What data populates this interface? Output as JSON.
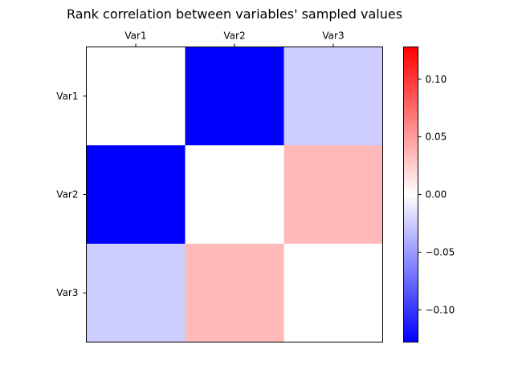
{
  "chart_data": {
    "type": "heatmap",
    "title": "Rank correlation between variables' sampled values",
    "x_labels": [
      "Var1",
      "Var2",
      "Var3"
    ],
    "y_labels": [
      "Var1",
      "Var2",
      "Var3"
    ],
    "x_tick_position": "top",
    "values": [
      [
        0.0,
        -0.128,
        -0.025
      ],
      [
        -0.128,
        0.0,
        0.035
      ],
      [
        -0.025,
        0.035,
        0.0
      ]
    ],
    "colormap": "bwr",
    "colorbar": {
      "vmin": -0.128,
      "vmax": 0.128,
      "ticks": [
        -0.1,
        -0.05,
        0.0,
        0.05,
        0.1
      ],
      "tick_labels": [
        "−0.10",
        "−0.05",
        "0.00",
        "0.05",
        "0.10"
      ]
    },
    "colors": {
      "low": "#0000ff",
      "mid": "#ffffff",
      "high": "#ff0000"
    }
  }
}
